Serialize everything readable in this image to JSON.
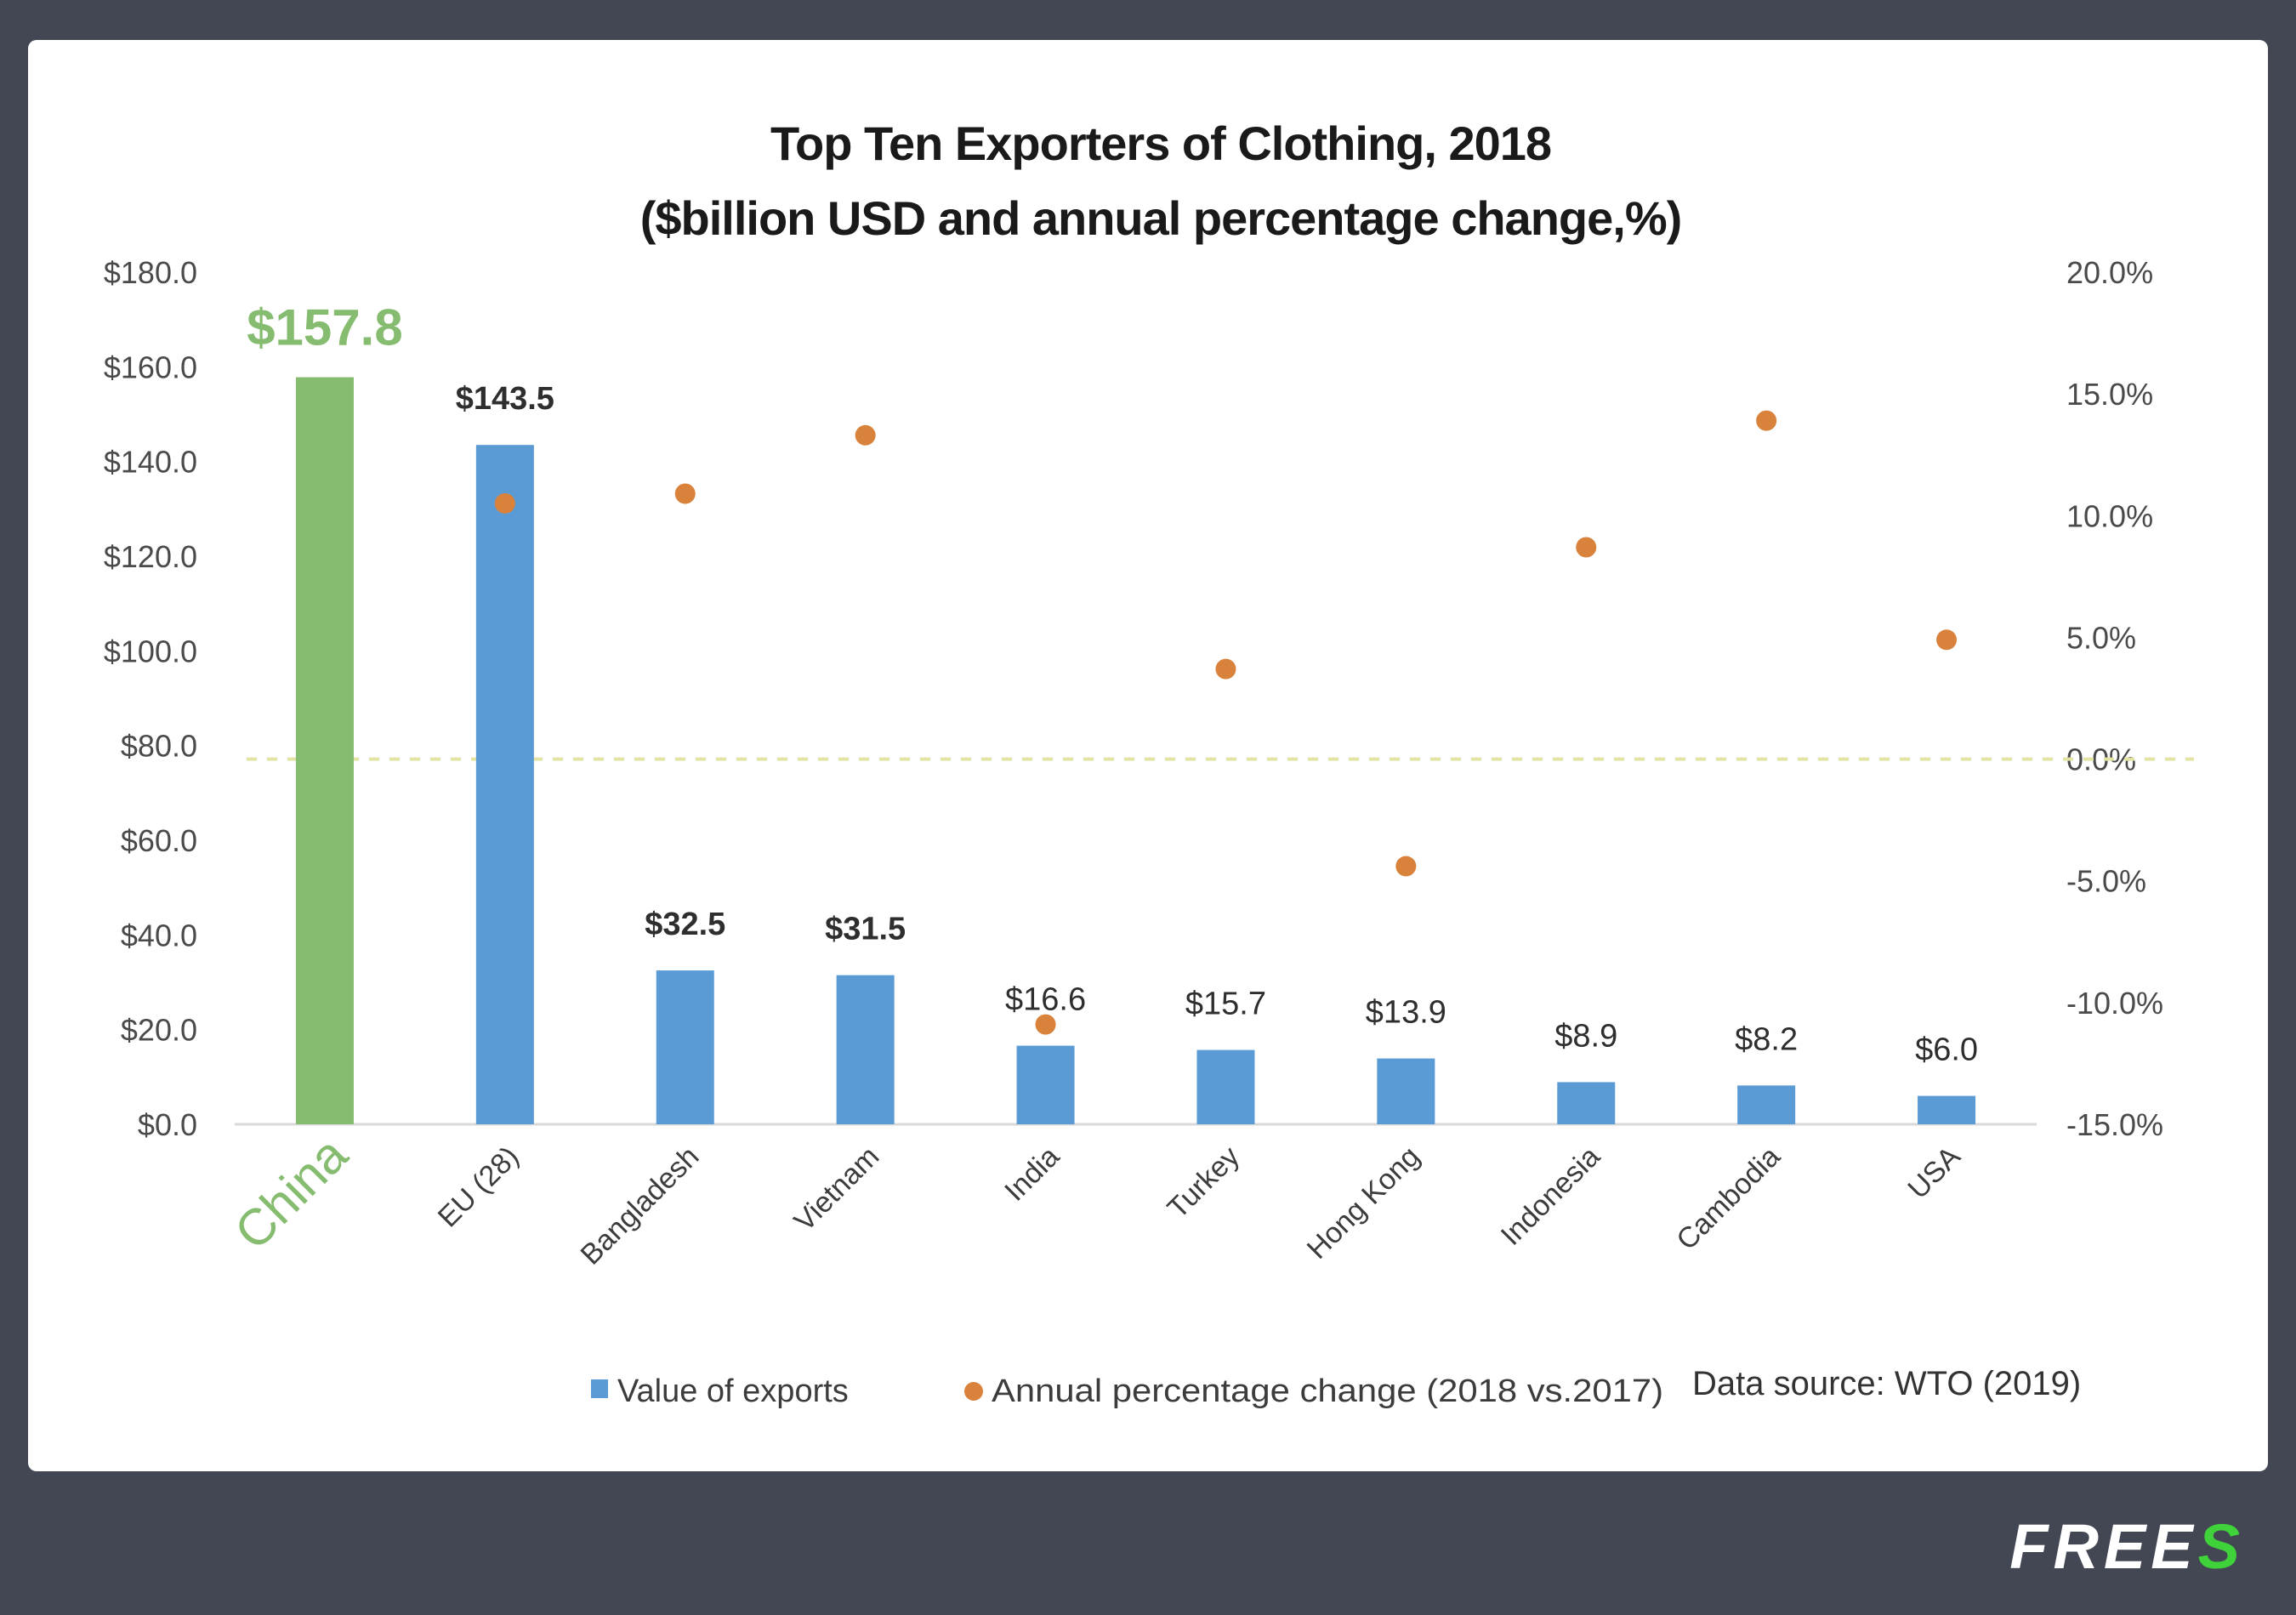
{
  "brand": {
    "text": "FREE",
    "accent": "S"
  },
  "chart_data": {
    "type": "bar",
    "title": "Top Ten Exporters of Clothing, 2018",
    "subtitle": "($billion USD and annual  percentage change,%)",
    "categories": [
      "China",
      "EU (28)",
      "Bangladesh",
      "Vietnam",
      "India",
      "Turkey",
      "Hong Kong",
      "Indonesia",
      "Cambodia",
      "USA"
    ],
    "highlight_category": "China",
    "series": [
      {
        "name": "Value of exports",
        "type": "bar",
        "axis": "left",
        "color": "#5b9bd5",
        "highlight_color": "#86bc6f",
        "values": [
          157.8,
          143.5,
          32.5,
          31.5,
          16.6,
          15.7,
          13.9,
          8.9,
          8.2,
          6.0
        ],
        "labels": [
          "$157.8",
          "$143.5",
          "$32.5",
          "$31.5",
          "$16.6",
          "$15.7",
          "$13.9",
          "$8.9",
          "$8.2",
          "$6.0"
        ]
      },
      {
        "name": "Annual percentage change (2018 vs.2017)",
        "type": "scatter",
        "axis": "right",
        "color": "#d9823b",
        "values": [
          null,
          10.5,
          10.9,
          13.3,
          -10.9,
          3.7,
          -4.4,
          8.7,
          13.9,
          4.9
        ]
      }
    ],
    "y_left": {
      "range": [
        0,
        180
      ],
      "ticks": [
        0,
        20,
        40,
        60,
        80,
        100,
        120,
        140,
        160,
        180
      ],
      "tick_labels": [
        "$0.0",
        "$20.0",
        "$40.0",
        "$60.0",
        "$80.0",
        "$100.0",
        "$120.0",
        "$140.0",
        "$160.0",
        "$180.0"
      ]
    },
    "y_right": {
      "range": [
        -15,
        20
      ],
      "ticks": [
        -15,
        -10,
        -5,
        0,
        5,
        10,
        15,
        20
      ],
      "tick_labels": [
        "-15.0%",
        "-10.0%",
        "-5.0%",
        "0.0%",
        "5.0%",
        "10.0%",
        "15.0%",
        "20.0%"
      ]
    },
    "reference_line": {
      "axis": "right",
      "value": 0,
      "style": "dashed",
      "color": "#e3e3a6"
    },
    "grid": false,
    "xlabel": "",
    "ylabel": "",
    "legend": {
      "position": "bottom",
      "entries": [
        {
          "label": "Value of exports",
          "marker": "square",
          "color": "#5b9bd5"
        },
        {
          "label": "Annual percentage change (2018 vs.2017)",
          "marker": "circle",
          "color": "#d9823b"
        }
      ]
    },
    "source": "Data source: WTO (2019)"
  }
}
